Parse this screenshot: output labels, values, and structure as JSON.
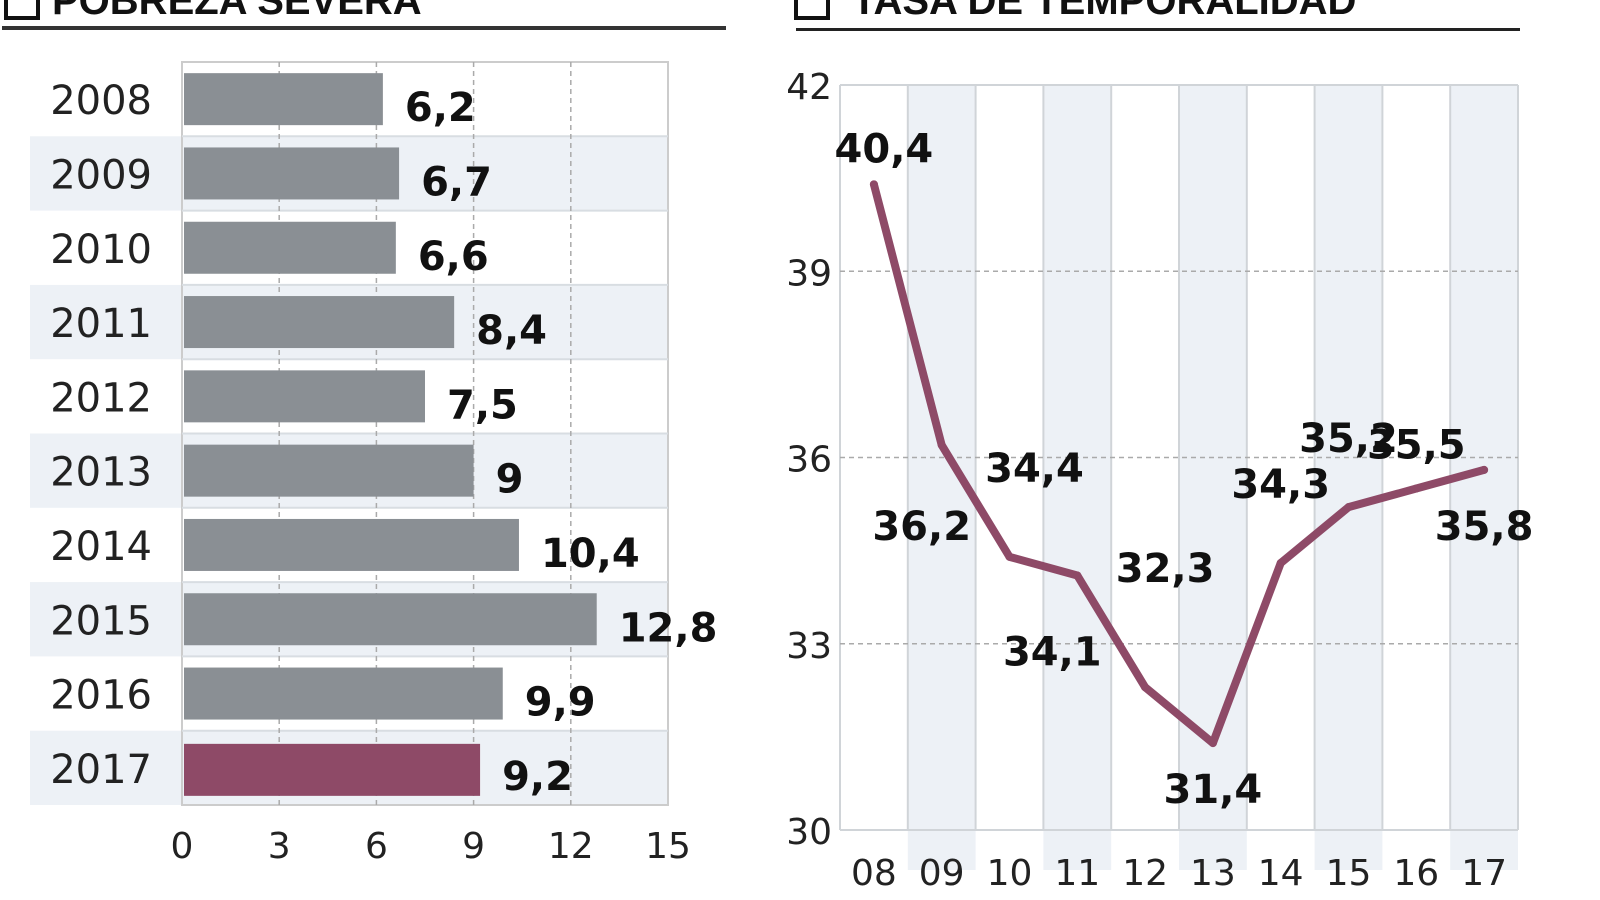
{
  "chart_data": [
    {
      "type": "bar",
      "orientation": "horizontal",
      "title": "POBREZA SEVERA",
      "categories": [
        "2008",
        "2009",
        "2010",
        "2011",
        "2012",
        "2013",
        "2014",
        "2015",
        "2016",
        "2017"
      ],
      "values": [
        6.2,
        6.7,
        6.6,
        8.4,
        7.5,
        9,
        10.4,
        12.8,
        9.9,
        9.2
      ],
      "data_labels": [
        "6,2",
        "6,7",
        "6,6",
        "8,4",
        "7,5",
        "9",
        "10,4",
        "12,8",
        "9,9",
        "9,2"
      ],
      "xlim": [
        0,
        15
      ],
      "xticks": [
        "0",
        "3",
        "6",
        "9",
        "12",
        "15"
      ],
      "grid": true,
      "colors": {
        "bar": "#8a8f94",
        "highlight": "#8e4a67",
        "stripe": "#edf1f6"
      }
    },
    {
      "type": "line",
      "title": "TASA DE TEMPORALIDAD",
      "categories": [
        "08",
        "09",
        "10",
        "11",
        "12",
        "13",
        "14",
        "15",
        "16",
        "17"
      ],
      "values": [
        40.4,
        36.2,
        34.4,
        34.1,
        32.3,
        31.4,
        34.3,
        35.2,
        35.5,
        35.8
      ],
      "data_labels": [
        "40,4",
        "36,2",
        "34,4",
        "34,1",
        "32,3",
        "31,4",
        "34,3",
        "35,2",
        "35,5",
        "35,8"
      ],
      "ylim": [
        30,
        42
      ],
      "yticks": [
        "30",
        "33",
        "36",
        "39",
        "42"
      ],
      "grid": true,
      "colors": {
        "line": "#8e4a67",
        "stripe": "#edf1f6"
      }
    }
  ]
}
